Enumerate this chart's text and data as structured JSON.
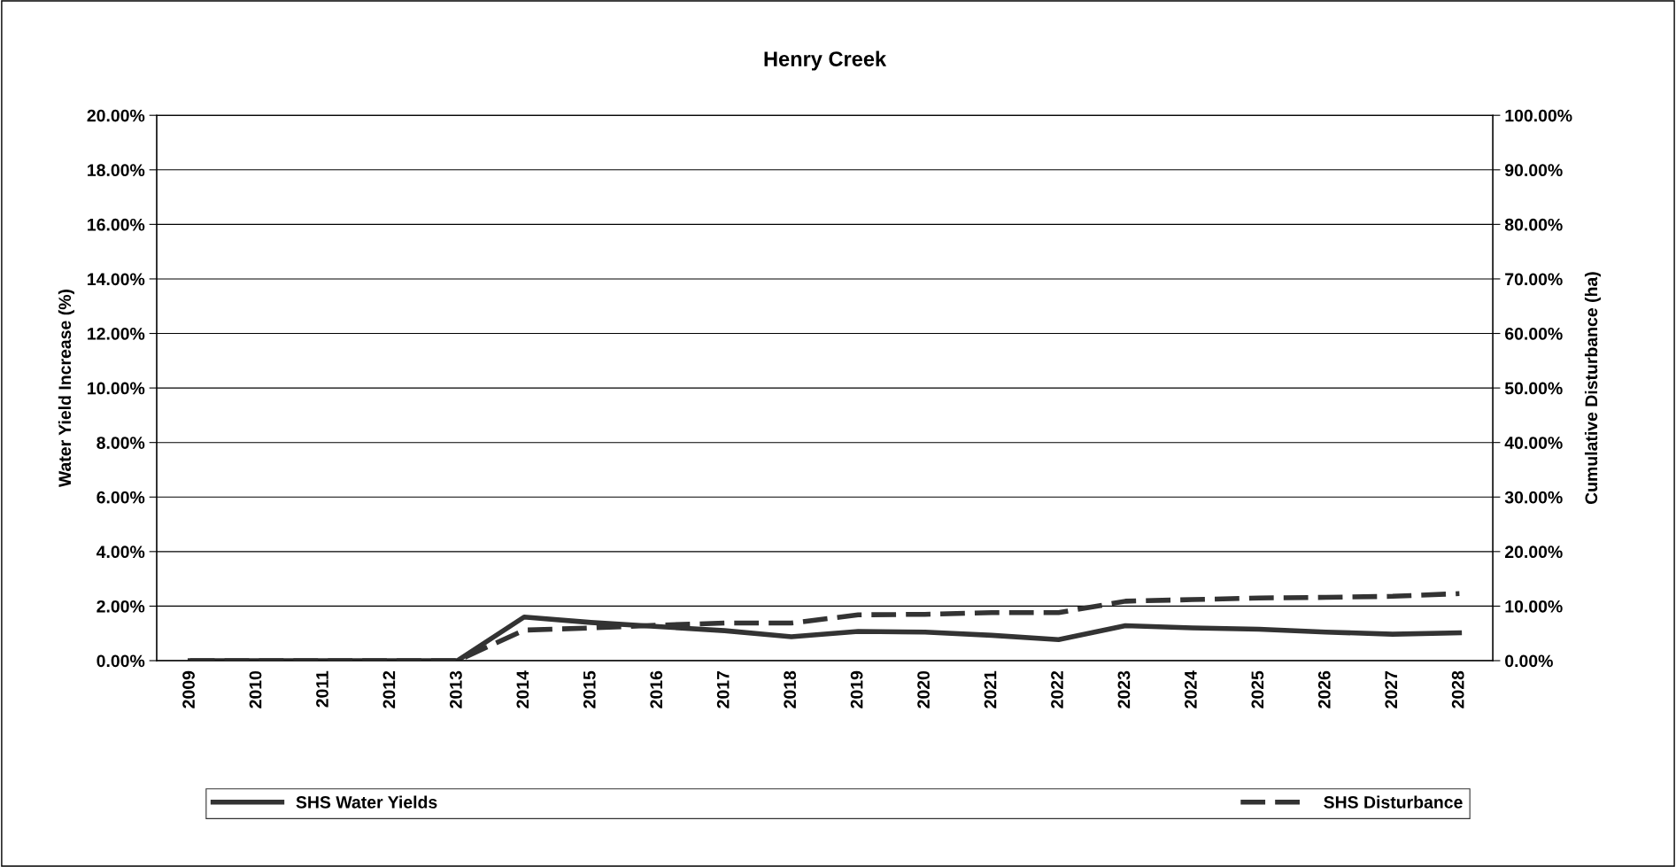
{
  "chart_data": {
    "type": "line",
    "title": "Henry Creek",
    "ylabel": "Water Yield Increase (%)",
    "y2label": "Cumulative Disturbance (ha)",
    "categories": [
      "2009",
      "2010",
      "2011",
      "2012",
      "2013",
      "2014",
      "2015",
      "2016",
      "2017",
      "2018",
      "2019",
      "2020",
      "2021",
      "2022",
      "2023",
      "2024",
      "2025",
      "2026",
      "2027",
      "2028"
    ],
    "series": [
      {
        "name": "SHS Water Yields",
        "color": "#333333",
        "line_style": "solid",
        "values": [
          0,
          0,
          0,
          0,
          0,
          1.6,
          1.4,
          1.25,
          1.1,
          0.88,
          1.07,
          1.05,
          0.93,
          0.77,
          1.28,
          1.2,
          1.15,
          1.05,
          0.97,
          1.02
        ]
      },
      {
        "name": "SHS Disturbance",
        "color": "#333333",
        "line_style": "dashed",
        "axis": "y2",
        "values": [
          0,
          0,
          0,
          0,
          0,
          5.6,
          6.0,
          6.5,
          6.9,
          6.9,
          8.4,
          8.5,
          8.8,
          8.8,
          10.9,
          11.2,
          11.5,
          11.6,
          11.8,
          12.3
        ]
      }
    ],
    "ylim": [
      0,
      20
    ],
    "yticks": [
      {
        "value": 0,
        "label": "0.00%"
      },
      {
        "value": 2,
        "label": "2.00%"
      },
      {
        "value": 4,
        "label": "4.00%"
      },
      {
        "value": 6,
        "label": "6.00%"
      },
      {
        "value": 8,
        "label": "8.00%"
      },
      {
        "value": 10,
        "label": "10.00%"
      },
      {
        "value": 12,
        "label": "12.00%"
      },
      {
        "value": 14,
        "label": "14.00%"
      },
      {
        "value": 16,
        "label": "16.00%"
      },
      {
        "value": 18,
        "label": "18.00%"
      },
      {
        "value": 20,
        "label": "20.00%"
      }
    ],
    "y2lim": [
      0,
      100
    ],
    "y2ticks": [
      {
        "value": 0,
        "label": "0.00%"
      },
      {
        "value": 10,
        "label": "10.00%"
      },
      {
        "value": 20,
        "label": "20.00%"
      },
      {
        "value": 30,
        "label": "30.00%"
      },
      {
        "value": 40,
        "label": "40.00%"
      },
      {
        "value": 50,
        "label": "50.00%"
      },
      {
        "value": 60,
        "label": "60.00%"
      },
      {
        "value": 70,
        "label": "70.00%"
      },
      {
        "value": 80,
        "label": "80.00%"
      },
      {
        "value": 90,
        "label": "90.00%"
      },
      {
        "value": 100,
        "label": "100.00%"
      }
    ],
    "grid": "y",
    "legend": "bottom",
    "marker": "none"
  }
}
